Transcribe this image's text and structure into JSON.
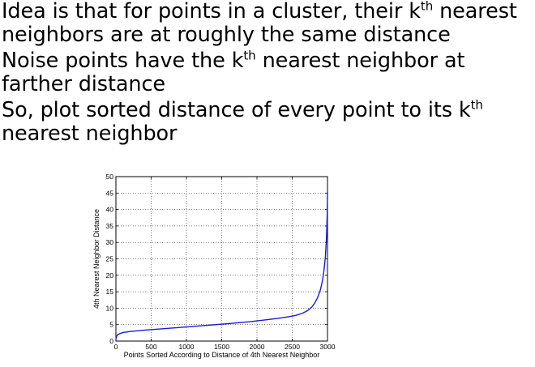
{
  "bullets": [
    {
      "parts": [
        "Idea is that for points in a cluster, their k",
        "th",
        " nearest neighbors are at roughly the same distance"
      ]
    },
    {
      "parts": [
        "Noise points have the k",
        "th",
        " nearest neighbor at farther distance"
      ]
    },
    {
      "parts": [
        "So, plot sorted distance of every point to its k",
        "th",
        " nearest neighbor"
      ]
    }
  ],
  "chart_data": {
    "type": "line",
    "title": "",
    "xlabel": "Points Sorted According to Distance of 4th Nearest Neighbor",
    "ylabel": "4th Nearest Neighbor Distance",
    "xlim": [
      0,
      3000
    ],
    "ylim": [
      0,
      50
    ],
    "xticks": [
      0,
      500,
      1000,
      1500,
      2000,
      2500,
      3000
    ],
    "yticks": [
      0,
      5,
      10,
      15,
      20,
      25,
      30,
      35,
      40,
      45,
      50
    ],
    "grid": true,
    "legend": "none",
    "series": [
      {
        "color": "#1a1adb",
        "x": [
          0,
          10,
          30,
          60,
          100,
          200,
          400,
          700,
          1000,
          1300,
          1600,
          1900,
          2100,
          2300,
          2450,
          2550,
          2650,
          2720,
          2780,
          2820,
          2860,
          2900,
          2930,
          2950,
          2970,
          2985,
          2995,
          3000
        ],
        "y": [
          0.6,
          1.5,
          2.0,
          2.3,
          2.6,
          2.9,
          3.3,
          3.8,
          4.3,
          4.8,
          5.3,
          5.9,
          6.4,
          6.9,
          7.4,
          7.8,
          8.5,
          9.3,
          10.4,
          11.6,
          13.2,
          15.6,
          18.5,
          21.5,
          25.5,
          31,
          38,
          45
        ]
      }
    ]
  }
}
